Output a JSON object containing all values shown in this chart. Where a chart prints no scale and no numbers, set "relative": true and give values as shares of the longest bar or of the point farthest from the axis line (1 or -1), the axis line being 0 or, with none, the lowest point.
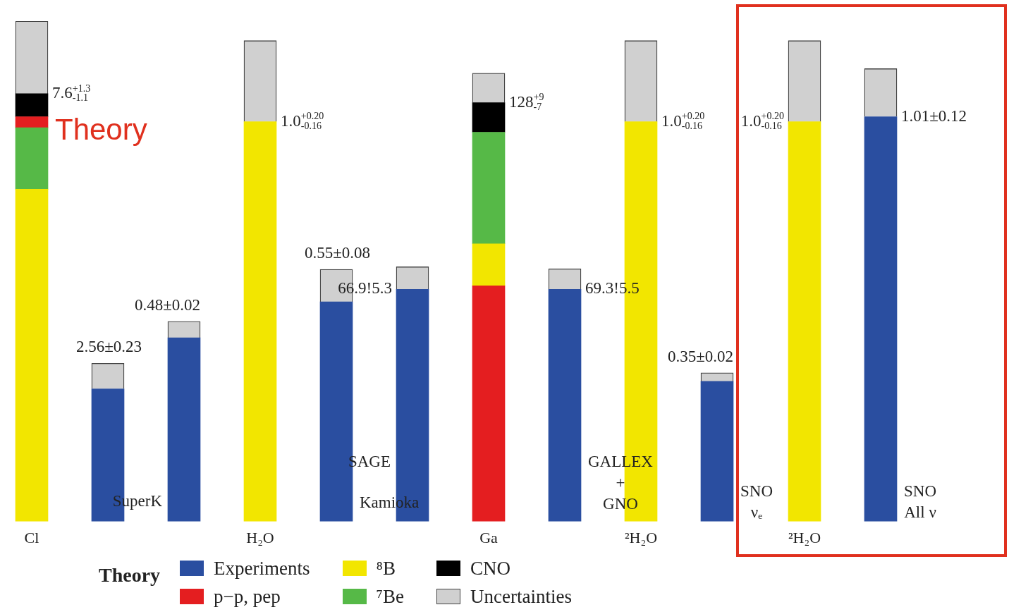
{
  "chart_data": {
    "type": "bar",
    "stacked": true,
    "relative": true,
    "legend": "bottom",
    "legend_title": "Theory",
    "categories": [
      "Cl",
      null,
      null,
      "H₂O",
      null,
      null,
      "Ga",
      null,
      "²H₂O",
      null,
      "²H₂O",
      null
    ],
    "series": [
      {
        "name": "Experiments",
        "color": "#2a4ea0",
        "values": [
          null,
          0.265,
          0.367,
          null,
          0.439,
          0.464,
          null,
          0.464,
          null,
          0.28,
          null,
          0.809
        ]
      },
      {
        "name": "p−p, pep",
        "color": "#e41e20",
        "values": [
          null,
          null,
          null,
          null,
          null,
          null,
          0.471,
          null,
          null,
          null,
          null,
          null
        ]
      },
      {
        "name": "⁸B",
        "color": "#f2e600",
        "values": [
          0.664,
          null,
          null,
          0.799,
          null,
          null,
          0.084,
          null,
          0.799,
          null,
          0.799,
          null
        ]
      },
      {
        "name": "⁷Be",
        "color": "#56b947",
        "values": [
          0.123,
          null,
          null,
          null,
          null,
          null,
          0.223,
          null,
          null,
          null,
          null,
          null
        ]
      },
      {
        "color": "#e41e20",
        "values": [
          0.022,
          null,
          null,
          null,
          null,
          null,
          null,
          null,
          null,
          null,
          null,
          null
        ]
      },
      {
        "name": "CNO",
        "color": "#000000",
        "values": [
          0.046,
          null,
          null,
          null,
          null,
          null,
          0.059,
          null,
          null,
          null,
          null,
          null
        ]
      },
      {
        "name": "Uncertainties",
        "color": "#d0d0d0",
        "values": [
          0.145,
          0.051,
          0.033,
          0.162,
          0.065,
          0.045,
          0.059,
          0.041,
          0.162,
          0.017,
          0.162,
          0.096
        ]
      }
    ],
    "annotations": [
      "Theory",
      "SuperK",
      "Kamioka",
      "SAGE",
      "GALLEX + GNO",
      "SNO νₑ",
      "SNO All ν",
      "7.6$^{+1.3}$$_{-1.1}$",
      "2.56±0.23",
      "0.48±0.02",
      "1.0$^{+0.20}$$_{-0.16}$",
      "0.55±0.08",
      "66.9!5.3",
      "128$^{+9}$$_{-7}$",
      "69.3!5.5",
      "1.0$^{+0.20}$$_{-0.16}$",
      "0.35±0.02",
      "1.0$^{+0.20}$$_{-0.16}$",
      "1.01±0.12"
    ]
  }
}
